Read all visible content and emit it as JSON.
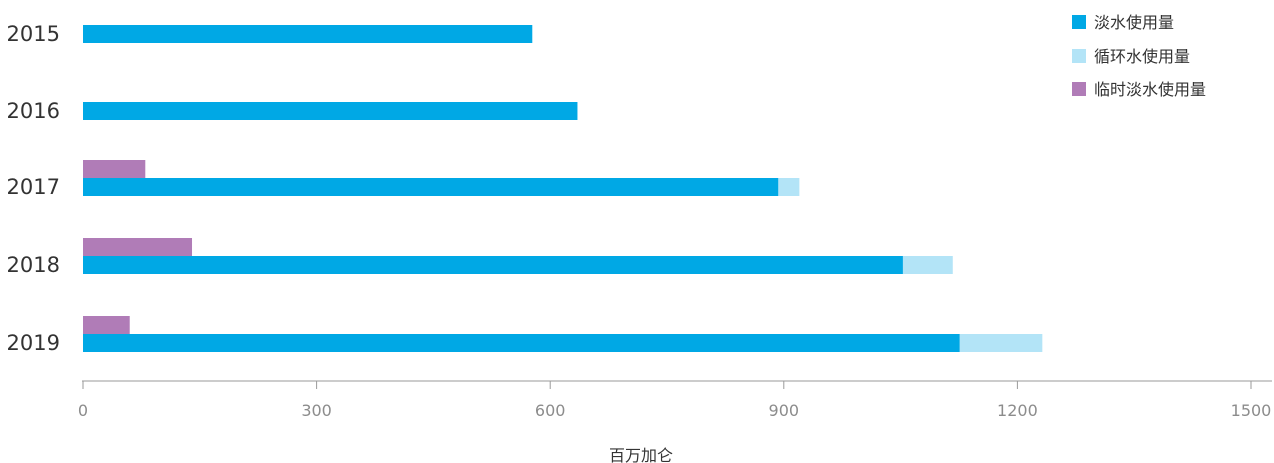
{
  "chart_data": {
    "type": "bar",
    "orientation": "horizontal",
    "stacked": true,
    "categories": [
      "2015",
      "2016",
      "2017",
      "2018",
      "2019"
    ],
    "series": [
      {
        "name": "淡水使用量",
        "values": [
          577,
          635,
          893,
          1053,
          1126
        ],
        "color": "#00a8e5"
      },
      {
        "name": "循环水使用量",
        "values": [
          0,
          0,
          27,
          64,
          106
        ],
        "color": "#b3e4f7"
      },
      {
        "name": "临时淡水使用量",
        "values": [
          0,
          0,
          80,
          140,
          60
        ],
        "color": "#b07cb7"
      }
    ],
    "xlabel": "百万加仑",
    "xlim": [
      0,
      1500
    ],
    "xticks": [
      0,
      300,
      600,
      900,
      1200,
      1500
    ],
    "grid": false,
    "legend_position": "top-right"
  }
}
